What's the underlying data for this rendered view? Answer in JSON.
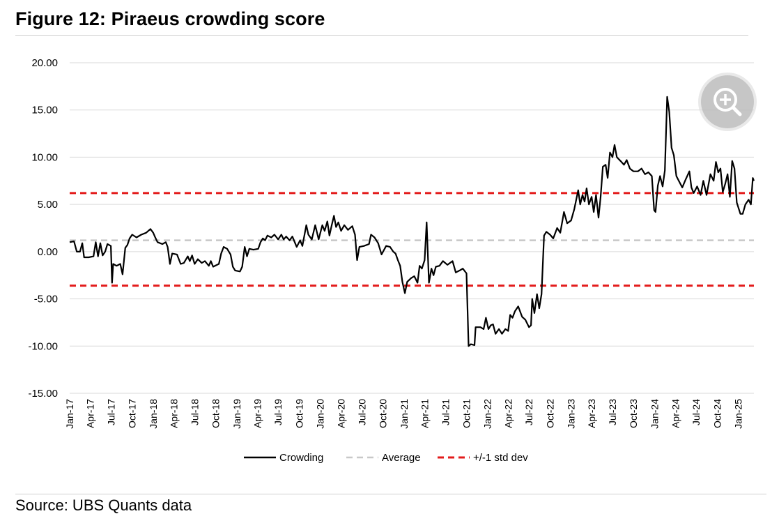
{
  "title": "Figure 12: Piraeus crowding score",
  "source": "Source: UBS Quants data",
  "zoom_icon": "zoom-in-icon",
  "colors": {
    "crowding": "#000000",
    "average": "#c8c8c8",
    "std": "#e31b1b",
    "grid": "#d9d9d9"
  },
  "chart_data": {
    "type": "line",
    "title": "Figure 12: Piraeus crowding score",
    "xlabel": "",
    "ylabel": "",
    "ylim": [
      -15,
      20
    ],
    "y_ticks": [
      "20.00",
      "15.00",
      "10.00",
      "5.00",
      "0.00",
      "-5.00",
      "-10.00",
      "-15.00"
    ],
    "y_tick_values": [
      20,
      15,
      10,
      5,
      0,
      -5,
      -10,
      -15
    ],
    "x_tick_labels": [
      "Jan-17",
      "Apr-17",
      "Jul-17",
      "Oct-17",
      "Jan-18",
      "Apr-18",
      "Jul-18",
      "Oct-18",
      "Jan-19",
      "Apr-19",
      "Jul-19",
      "Oct-19",
      "Jan-20",
      "Apr-20",
      "Jul-20",
      "Oct-20",
      "Jan-21",
      "Apr-21",
      "Jul-21",
      "Oct-21",
      "Jan-22",
      "Apr-22",
      "Jul-22",
      "Oct-22",
      "Jan-23",
      "Apr-23",
      "Jul-23",
      "Oct-23",
      "Jan-24",
      "Apr-24",
      "Jul-24",
      "Oct-24",
      "Jan-25"
    ],
    "grid": "horizontal",
    "legend": {
      "position": "bottom",
      "entries": [
        "Crowding",
        "Average",
        "+/-1 std dev"
      ]
    },
    "series": [
      {
        "name": "Crowding",
        "style": "solid",
        "points": [
          [
            "2017-01-01",
            1.0
          ],
          [
            "2017-01-20",
            1.1
          ],
          [
            "2017-02-01",
            0.0
          ],
          [
            "2017-02-15",
            0.0
          ],
          [
            "2017-02-25",
            0.9
          ],
          [
            "2017-03-05",
            -0.6
          ],
          [
            "2017-03-25",
            -0.6
          ],
          [
            "2017-04-15",
            -0.5
          ],
          [
            "2017-04-25",
            1.0
          ],
          [
            "2017-05-05",
            -0.5
          ],
          [
            "2017-05-15",
            0.9
          ],
          [
            "2017-05-25",
            -0.4
          ],
          [
            "2017-06-05",
            0.0
          ],
          [
            "2017-06-15",
            0.8
          ],
          [
            "2017-06-30",
            0.6
          ],
          [
            "2017-07-05",
            -3.3
          ],
          [
            "2017-07-10",
            -1.3
          ],
          [
            "2017-07-25",
            -1.5
          ],
          [
            "2017-08-10",
            -1.3
          ],
          [
            "2017-08-20",
            -2.4
          ],
          [
            "2017-09-01",
            0.4
          ],
          [
            "2017-09-10",
            0.7
          ],
          [
            "2017-09-20",
            1.4
          ],
          [
            "2017-10-01",
            1.8
          ],
          [
            "2017-10-20",
            1.5
          ],
          [
            "2017-11-10",
            1.8
          ],
          [
            "2017-12-01",
            2.0
          ],
          [
            "2017-12-20",
            2.4
          ],
          [
            "2018-01-01",
            2.0
          ],
          [
            "2018-01-10",
            1.5
          ],
          [
            "2018-01-20",
            1.0
          ],
          [
            "2018-02-10",
            0.8
          ],
          [
            "2018-02-25",
            1.0
          ],
          [
            "2018-03-05",
            0.5
          ],
          [
            "2018-03-15",
            -1.3
          ],
          [
            "2018-03-25",
            -0.2
          ],
          [
            "2018-04-15",
            -0.3
          ],
          [
            "2018-05-01",
            -1.3
          ],
          [
            "2018-05-15",
            -1.2
          ],
          [
            "2018-06-01",
            -0.5
          ],
          [
            "2018-06-10",
            -1.0
          ],
          [
            "2018-06-20",
            -0.4
          ],
          [
            "2018-07-01",
            -1.3
          ],
          [
            "2018-07-15",
            -0.8
          ],
          [
            "2018-08-01",
            -1.2
          ],
          [
            "2018-08-15",
            -1.0
          ],
          [
            "2018-09-01",
            -1.5
          ],
          [
            "2018-09-10",
            -1.0
          ],
          [
            "2018-09-20",
            -1.6
          ],
          [
            "2018-10-15",
            -1.3
          ],
          [
            "2018-10-25",
            -0.2
          ],
          [
            "2018-11-05",
            0.5
          ],
          [
            "2018-11-20",
            0.3
          ],
          [
            "2018-12-05",
            -0.3
          ],
          [
            "2018-12-15",
            -1.6
          ],
          [
            "2018-12-25",
            -2.0
          ],
          [
            "2019-01-15",
            -2.1
          ],
          [
            "2019-01-25",
            -1.6
          ],
          [
            "2019-02-05",
            0.5
          ],
          [
            "2019-02-15",
            -0.5
          ],
          [
            "2019-02-25",
            0.3
          ],
          [
            "2019-03-15",
            0.2
          ],
          [
            "2019-04-05",
            0.3
          ],
          [
            "2019-04-15",
            1.0
          ],
          [
            "2019-04-25",
            1.4
          ],
          [
            "2019-05-05",
            1.2
          ],
          [
            "2019-05-15",
            1.7
          ],
          [
            "2019-06-01",
            1.5
          ],
          [
            "2019-06-15",
            1.8
          ],
          [
            "2019-07-01",
            1.3
          ],
          [
            "2019-07-15",
            1.8
          ],
          [
            "2019-07-25",
            1.3
          ],
          [
            "2019-08-05",
            1.6
          ],
          [
            "2019-08-20",
            1.2
          ],
          [
            "2019-09-01",
            1.6
          ],
          [
            "2019-09-20",
            0.5
          ],
          [
            "2019-10-05",
            1.2
          ],
          [
            "2019-10-15",
            0.6
          ],
          [
            "2019-11-01",
            2.8
          ],
          [
            "2019-11-10",
            1.8
          ],
          [
            "2019-11-25",
            1.3
          ],
          [
            "2019-12-10",
            2.8
          ],
          [
            "2019-12-25",
            1.3
          ],
          [
            "2020-01-10",
            2.8
          ],
          [
            "2020-01-20",
            2.2
          ],
          [
            "2020-02-01",
            3.2
          ],
          [
            "2020-02-10",
            1.7
          ],
          [
            "2020-02-20",
            2.8
          ],
          [
            "2020-03-01",
            3.8
          ],
          [
            "2020-03-10",
            2.6
          ],
          [
            "2020-03-20",
            3.1
          ],
          [
            "2020-04-01",
            2.2
          ],
          [
            "2020-04-15",
            2.8
          ],
          [
            "2020-05-01",
            2.3
          ],
          [
            "2020-05-20",
            2.7
          ],
          [
            "2020-06-01",
            1.8
          ],
          [
            "2020-06-10",
            -0.9
          ],
          [
            "2020-06-20",
            0.5
          ],
          [
            "2020-07-10",
            0.6
          ],
          [
            "2020-08-01",
            0.8
          ],
          [
            "2020-08-10",
            1.8
          ],
          [
            "2020-08-25",
            1.5
          ],
          [
            "2020-09-10",
            0.9
          ],
          [
            "2020-09-25",
            -0.3
          ],
          [
            "2020-10-15",
            0.6
          ],
          [
            "2020-11-01",
            0.5
          ],
          [
            "2020-11-15",
            0.0
          ],
          [
            "2020-11-25",
            -0.2
          ],
          [
            "2020-12-05",
            -0.9
          ],
          [
            "2020-12-15",
            -1.5
          ],
          [
            "2020-12-25",
            -3.2
          ],
          [
            "2021-01-05",
            -4.4
          ],
          [
            "2021-01-15",
            -3.2
          ],
          [
            "2021-02-01",
            -2.8
          ],
          [
            "2021-02-15",
            -2.6
          ],
          [
            "2021-03-01",
            -3.3
          ],
          [
            "2021-03-10",
            -1.5
          ],
          [
            "2021-03-20",
            -1.8
          ],
          [
            "2021-04-01",
            -0.9
          ],
          [
            "2021-04-10",
            3.1
          ],
          [
            "2021-04-20",
            -3.3
          ],
          [
            "2021-05-01",
            -1.8
          ],
          [
            "2021-05-10",
            -2.5
          ],
          [
            "2021-05-20",
            -1.6
          ],
          [
            "2021-06-05",
            -1.5
          ],
          [
            "2021-06-20",
            -1.0
          ],
          [
            "2021-07-10",
            -1.4
          ],
          [
            "2021-08-01",
            -1.0
          ],
          [
            "2021-08-15",
            -2.2
          ],
          [
            "2021-09-01",
            -2.0
          ],
          [
            "2021-09-15",
            -1.8
          ],
          [
            "2021-10-01",
            -2.3
          ],
          [
            "2021-10-10",
            -10.0
          ],
          [
            "2021-10-20",
            -9.8
          ],
          [
            "2021-11-05",
            -9.9
          ],
          [
            "2021-11-10",
            -8.0
          ],
          [
            "2021-12-01",
            -8.0
          ],
          [
            "2021-12-15",
            -8.2
          ],
          [
            "2021-12-25",
            -7.0
          ],
          [
            "2022-01-05",
            -8.2
          ],
          [
            "2022-01-15",
            -7.8
          ],
          [
            "2022-01-25",
            -7.7
          ],
          [
            "2022-02-05",
            -8.7
          ],
          [
            "2022-02-20",
            -8.2
          ],
          [
            "2022-03-05",
            -8.7
          ],
          [
            "2022-03-20",
            -8.2
          ],
          [
            "2022-04-01",
            -8.4
          ],
          [
            "2022-04-10",
            -6.7
          ],
          [
            "2022-04-20",
            -7.0
          ],
          [
            "2022-05-01",
            -6.3
          ],
          [
            "2022-05-15",
            -5.8
          ],
          [
            "2022-06-01",
            -6.9
          ],
          [
            "2022-06-15",
            -7.2
          ],
          [
            "2022-07-01",
            -8.0
          ],
          [
            "2022-07-10",
            -7.8
          ],
          [
            "2022-07-15",
            -5.0
          ],
          [
            "2022-07-25",
            -6.5
          ],
          [
            "2022-08-05",
            -4.5
          ],
          [
            "2022-08-15",
            -6.0
          ],
          [
            "2022-08-25",
            -4.5
          ],
          [
            "2022-09-05",
            1.7
          ],
          [
            "2022-09-15",
            2.1
          ],
          [
            "2022-10-01",
            1.8
          ],
          [
            "2022-10-15",
            1.4
          ],
          [
            "2022-11-01",
            2.5
          ],
          [
            "2022-11-15",
            2.0
          ],
          [
            "2022-12-01",
            4.2
          ],
          [
            "2022-12-15",
            3.0
          ],
          [
            "2023-01-01",
            3.3
          ],
          [
            "2023-01-15",
            4.5
          ],
          [
            "2023-02-01",
            6.5
          ],
          [
            "2023-02-10",
            5.0
          ],
          [
            "2023-02-20",
            6.0
          ],
          [
            "2023-03-01",
            5.3
          ],
          [
            "2023-03-10",
            6.7
          ],
          [
            "2023-03-20",
            5.0
          ],
          [
            "2023-04-01",
            5.8
          ],
          [
            "2023-04-10",
            4.2
          ],
          [
            "2023-04-20",
            6.0
          ],
          [
            "2023-05-01",
            3.6
          ],
          [
            "2023-05-10",
            5.8
          ],
          [
            "2023-05-20",
            9.0
          ],
          [
            "2023-06-01",
            9.2
          ],
          [
            "2023-06-10",
            7.8
          ],
          [
            "2023-06-20",
            10.5
          ],
          [
            "2023-07-01",
            10.0
          ],
          [
            "2023-07-10",
            11.3
          ],
          [
            "2023-07-20",
            10.0
          ],
          [
            "2023-08-05",
            9.6
          ],
          [
            "2023-08-20",
            9.2
          ],
          [
            "2023-09-01",
            9.7
          ],
          [
            "2023-09-15",
            8.8
          ],
          [
            "2023-10-01",
            8.5
          ],
          [
            "2023-10-20",
            8.5
          ],
          [
            "2023-11-05",
            8.8
          ],
          [
            "2023-11-20",
            8.2
          ],
          [
            "2023-12-05",
            8.4
          ],
          [
            "2023-12-20",
            8.0
          ],
          [
            "2023-12-30",
            4.4
          ],
          [
            "2024-01-05",
            4.2
          ],
          [
            "2024-01-15",
            7.0
          ],
          [
            "2024-01-25",
            8.0
          ],
          [
            "2024-02-05",
            6.9
          ],
          [
            "2024-02-15",
            8.6
          ],
          [
            "2024-02-25",
            16.4
          ],
          [
            "2024-03-05",
            14.8
          ],
          [
            "2024-03-15",
            11.0
          ],
          [
            "2024-03-25",
            10.2
          ],
          [
            "2024-04-05",
            8.0
          ],
          [
            "2024-04-20",
            7.3
          ],
          [
            "2024-05-01",
            6.8
          ],
          [
            "2024-05-15",
            7.6
          ],
          [
            "2024-06-01",
            8.5
          ],
          [
            "2024-06-10",
            6.8
          ],
          [
            "2024-06-20",
            6.2
          ],
          [
            "2024-07-05",
            6.9
          ],
          [
            "2024-07-20",
            6.0
          ],
          [
            "2024-08-01",
            7.5
          ],
          [
            "2024-08-15",
            6.0
          ],
          [
            "2024-09-01",
            8.2
          ],
          [
            "2024-09-15",
            7.5
          ],
          [
            "2024-09-25",
            9.5
          ],
          [
            "2024-10-05",
            8.4
          ],
          [
            "2024-10-15",
            8.8
          ],
          [
            "2024-10-25",
            6.3
          ],
          [
            "2024-11-05",
            7.2
          ],
          [
            "2024-11-15",
            8.2
          ],
          [
            "2024-11-25",
            5.8
          ],
          [
            "2024-12-05",
            9.6
          ],
          [
            "2024-12-15",
            8.8
          ],
          [
            "2024-12-25",
            5.2
          ],
          [
            "2025-01-10",
            4.0
          ],
          [
            "2025-01-20",
            4.0
          ],
          [
            "2025-02-01",
            5.0
          ],
          [
            "2025-02-15",
            5.5
          ],
          [
            "2025-02-25",
            5.0
          ],
          [
            "2025-03-05",
            7.8
          ],
          [
            "2025-03-10",
            7.5
          ]
        ]
      },
      {
        "name": "Average",
        "style": "dashed",
        "value": 1.2
      },
      {
        "name": "+/-1 std dev",
        "style": "dashed",
        "values": [
          6.2,
          -3.6
        ]
      }
    ]
  }
}
